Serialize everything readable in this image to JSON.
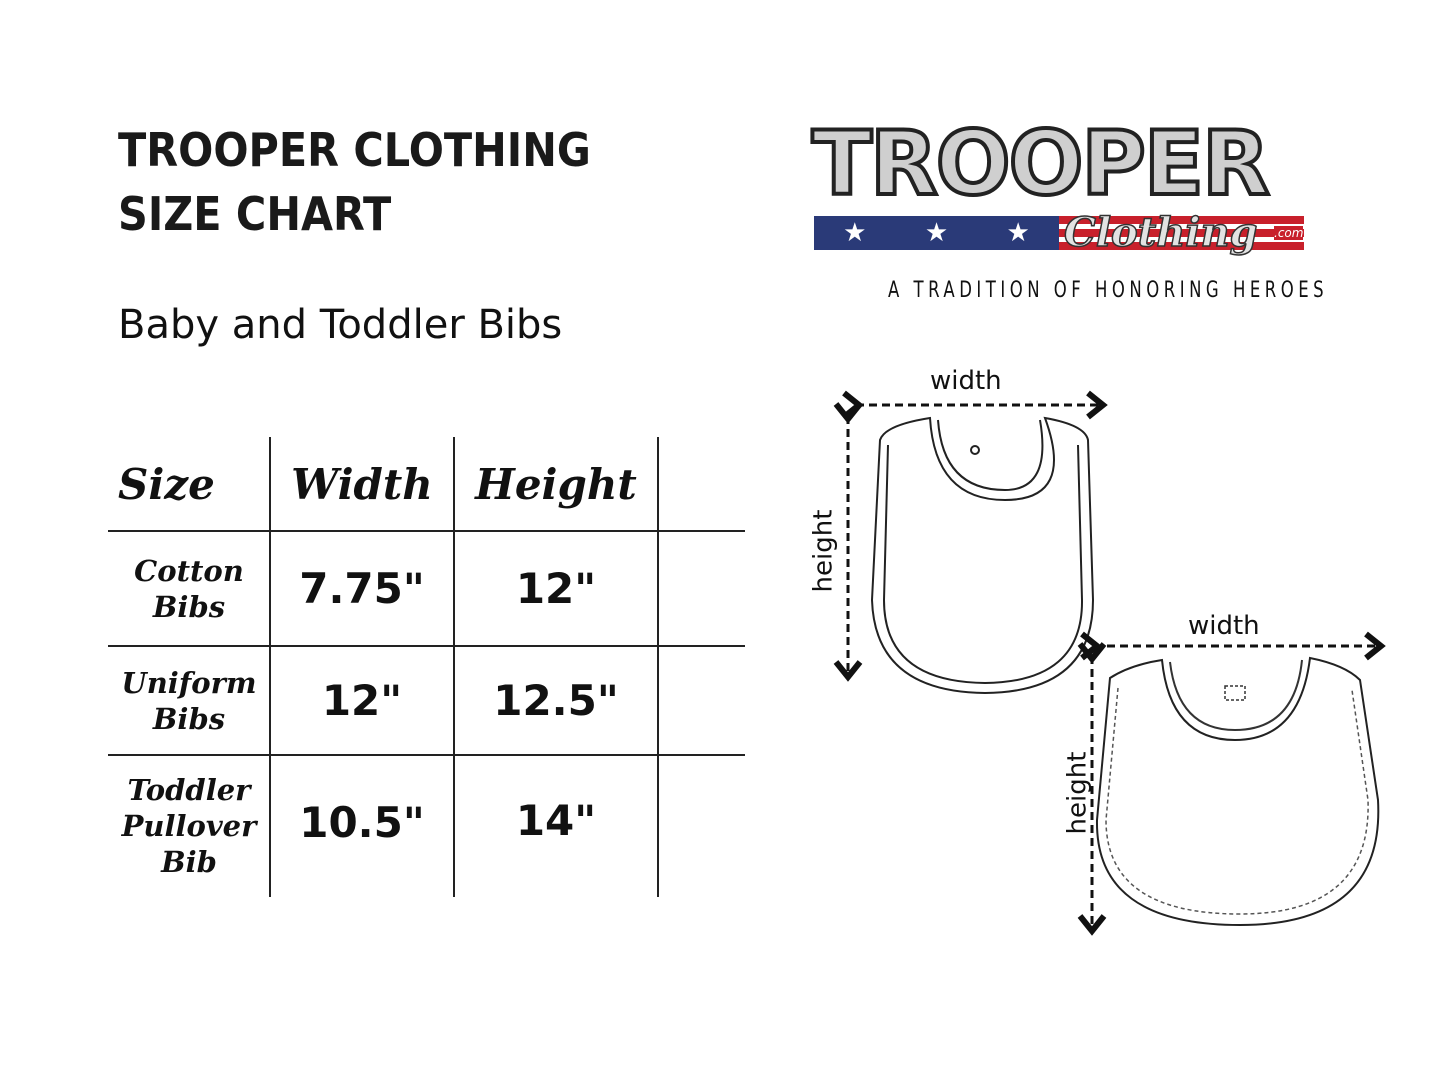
{
  "header": {
    "title_line1": "TROOPER CLOTHING",
    "title_line2": "SIZE CHART",
    "subtitle": "Baby and Toddler Bibs"
  },
  "logo": {
    "brand": "TROOPER",
    "script": "Clothing",
    "domain": ".com",
    "tagline": "A TRADITION OF HONORING HEROES",
    "colors": {
      "blue": "#2a3a78",
      "red": "#c8202b",
      "silver": "#cfcfcf"
    }
  },
  "table": {
    "columns": [
      "Size",
      "Width",
      "Height",
      ""
    ],
    "rows": [
      {
        "size": "Cotton Bibs",
        "width": "7.75\"",
        "height": "12\""
      },
      {
        "size": "Uniform Bibs",
        "width": "12\"",
        "height": "12.5\""
      },
      {
        "size": "Toddler Pullover Bib",
        "width": "10.5\"",
        "height": "14\""
      }
    ]
  },
  "diagrams": {
    "bib1": {
      "width_label": "width",
      "height_label": "height"
    },
    "bib2": {
      "width_label": "width",
      "height_label": "height"
    }
  }
}
